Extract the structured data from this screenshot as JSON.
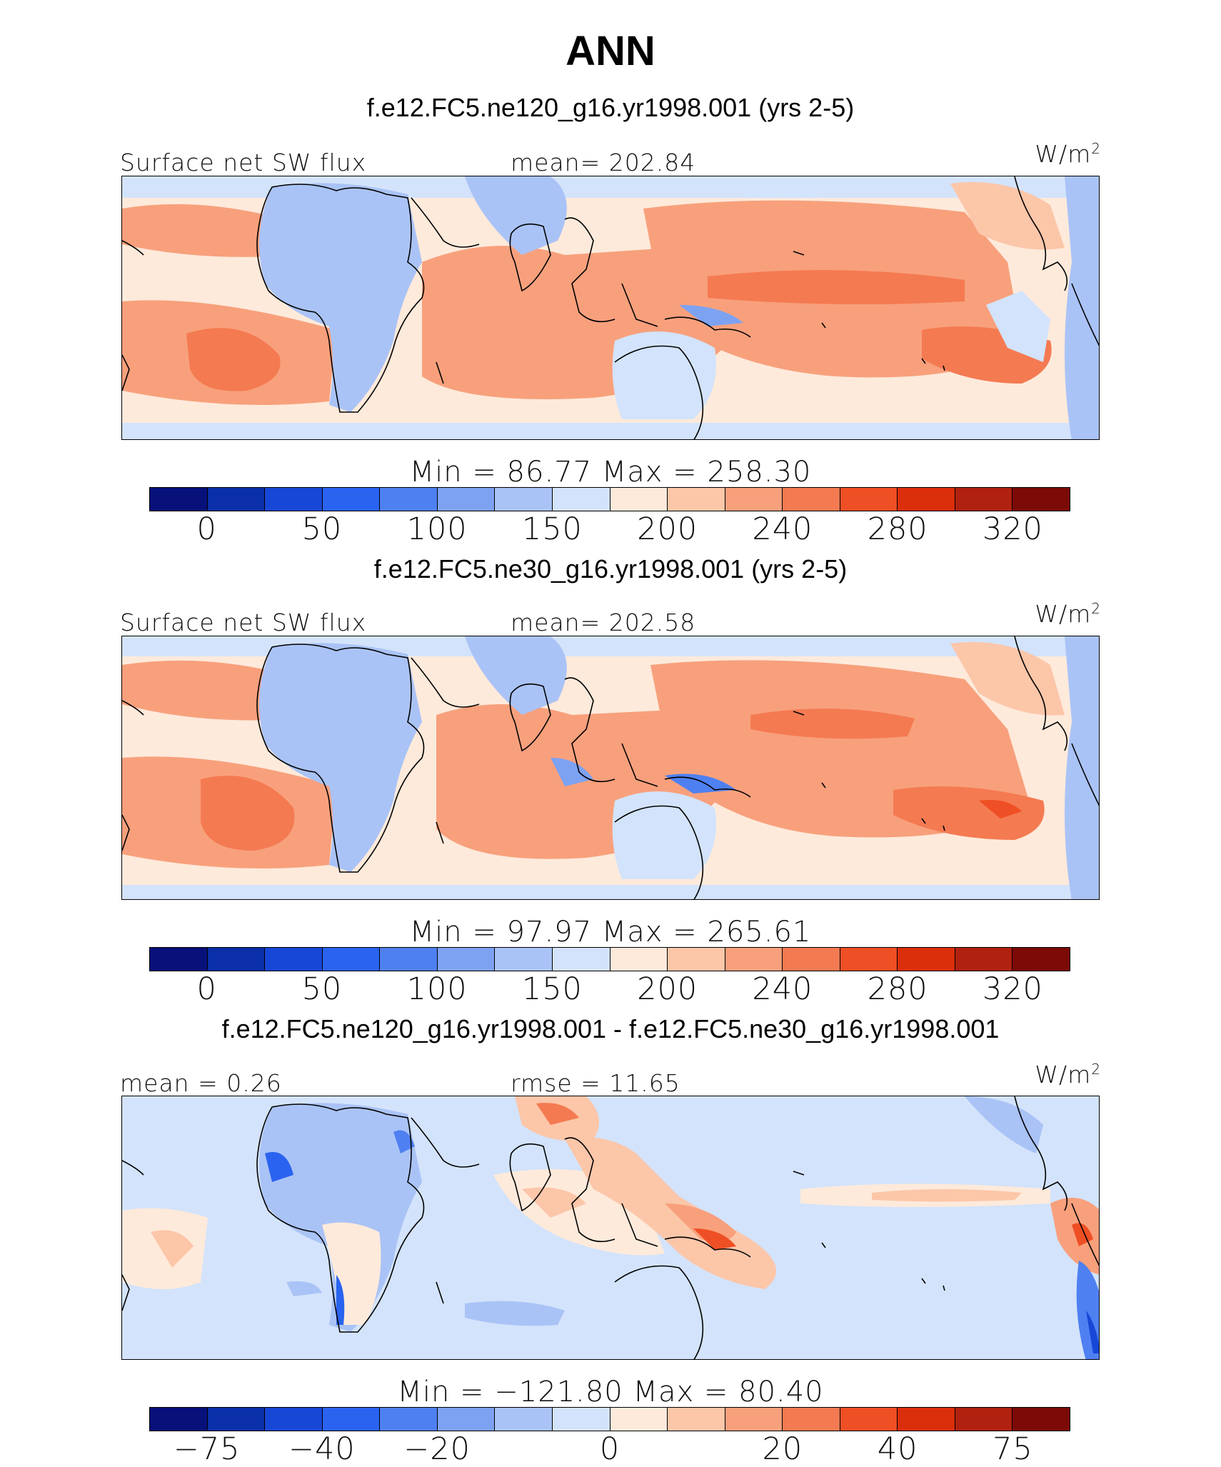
{
  "figure": {
    "title": "ANN"
  },
  "panels": [
    {
      "case_title": "f.e12.FC5.ne120_g16.yr1998.001 (yrs 2-5)",
      "left_label": "Surface net SW flux",
      "mid_label": "mean= 202.84",
      "units": "W/m",
      "units_sup": "2",
      "minmax": "Min =   86.77  Max = 258.30",
      "palette": "pos",
      "ticks": [
        "0",
        "50",
        "100",
        "150",
        "200",
        "240",
        "280",
        "320"
      ]
    },
    {
      "case_title": "f.e12.FC5.ne30_g16.yr1998.001 (yrs 2-5)",
      "left_label": "Surface net SW flux",
      "mid_label": "mean= 202.58",
      "units": "W/m",
      "units_sup": "2",
      "minmax": "Min =   97.97  Max = 265.61",
      "palette": "pos",
      "ticks": [
        "0",
        "50",
        "100",
        "150",
        "200",
        "240",
        "280",
        "320"
      ]
    },
    {
      "case_title": "f.e12.FC5.ne120_g16.yr1998.001 - f.e12.FC5.ne30_g16.yr1998.001",
      "left_label": "mean =    0.26",
      "mid_label": "rmse =   11.65",
      "units": "W/m",
      "units_sup": "2",
      "minmax": "Min = −121.80  Max =   80.40",
      "palette": "diff",
      "ticks": [
        "−75",
        "−40",
        "−20",
        "0",
        "20",
        "40",
        "75"
      ]
    }
  ],
  "colors": {
    "palette_pos": [
      "#08107a",
      "#0a2fa8",
      "#1747d6",
      "#2a63f0",
      "#4f80f2",
      "#7ea2f2",
      "#aac3f6",
      "#d3e3fb",
      "#feeadb",
      "#fcc6a9",
      "#f8a07c",
      "#f47a51",
      "#ef4f24",
      "#db2e0b",
      "#b02110",
      "#7c0a07"
    ],
    "palette_diff": [
      "#08107a",
      "#0a2fa8",
      "#1747d6",
      "#2a63f0",
      "#4f80f2",
      "#7ea2f2",
      "#aac3f6",
      "#d3e3fb",
      "#feeadb",
      "#fcc6a9",
      "#f8a07c",
      "#f47a51",
      "#ef4f24",
      "#db2e0b",
      "#b02110",
      "#7c0a07"
    ]
  }
}
